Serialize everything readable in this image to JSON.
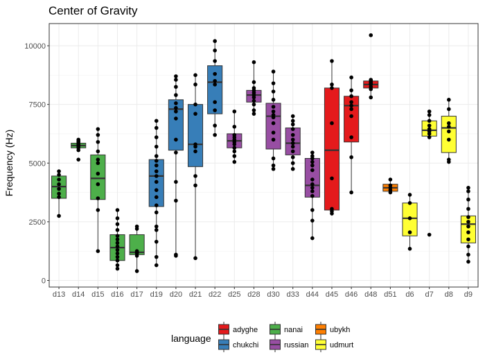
{
  "chart_data": {
    "type": "box",
    "title": "Center of Gravity",
    "xlabel": "",
    "ylabel": "Frequency (Hz)",
    "ylim": [
      0,
      10800
    ],
    "yticks": [
      0,
      2500,
      5000,
      7500,
      10000
    ],
    "ytick_labels": [
      "0",
      "2500",
      "5000",
      "7500",
      "10000"
    ],
    "grid": true,
    "legend": {
      "title": "language",
      "position": "bottom",
      "entries": [
        {
          "name": "adyghe",
          "color": "#e41a1c"
        },
        {
          "name": "chukchi",
          "color": "#377eb8"
        },
        {
          "name": "nanai",
          "color": "#4daf4a"
        },
        {
          "name": "russian",
          "color": "#984ea3"
        },
        {
          "name": "ubykh",
          "color": "#ff7f00"
        },
        {
          "name": "udmurt",
          "color": "#ffff33"
        }
      ]
    },
    "categories": [
      "d13",
      "d14",
      "d15",
      "d16",
      "d17",
      "d19",
      "d20",
      "d21",
      "d22",
      "d25",
      "d28",
      "d30",
      "d33",
      "d44",
      "d45",
      "d46",
      "d48",
      "d51",
      "d6",
      "d7",
      "d8",
      "d9"
    ],
    "boxes": [
      {
        "label": "d13",
        "language": "nanai",
        "whisker_low": 2750,
        "q1": 3500,
        "median": 4000,
        "q3": 4450,
        "whisker_high": 4700,
        "points": [
          2750,
          3550,
          3700,
          3900,
          4100,
          4300,
          4500,
          4650
        ]
      },
      {
        "label": "d14",
        "language": "nanai",
        "whisker_low": 5550,
        "q1": 5650,
        "median": 5750,
        "q3": 5850,
        "whisker_high": 6000,
        "points": [
          5150,
          5550,
          5650,
          5700,
          5750,
          5800,
          5850,
          5900,
          5950,
          6000
        ]
      },
      {
        "label": "d15",
        "language": "nanai",
        "whisker_low": 1250,
        "q1": 3450,
        "median": 4350,
        "q3": 5350,
        "whisker_high": 6450,
        "points": [
          1250,
          3000,
          3500,
          4100,
          4550,
          5000,
          5150,
          5500,
          5900,
          6200,
          6450
        ]
      },
      {
        "label": "d16",
        "language": "nanai",
        "whisker_low": 500,
        "q1": 850,
        "median": 1400,
        "q3": 1950,
        "whisker_high": 3000,
        "points": [
          500,
          650,
          850,
          1000,
          1150,
          1300,
          1450,
          1600,
          1750,
          1900,
          2150,
          2400,
          2650,
          3000
        ]
      },
      {
        "label": "d17",
        "language": "nanai",
        "whisker_low": 400,
        "q1": 1100,
        "median": 1200,
        "q3": 1950,
        "whisker_high": 2300,
        "points": [
          400,
          1050,
          1150,
          1200,
          1250,
          2200,
          2300
        ]
      },
      {
        "label": "d19",
        "language": "chukchi",
        "whisker_low": 650,
        "q1": 3150,
        "median": 4450,
        "q3": 5150,
        "whisker_high": 6800,
        "points": [
          650,
          1000,
          1650,
          2150,
          2300,
          2900,
          3200,
          3550,
          3850,
          4200,
          4450,
          4650,
          4900,
          5100,
          5300,
          5700,
          6100,
          6500,
          6800
        ]
      },
      {
        "label": "d20",
        "language": "chukchi",
        "whisker_low": 1050,
        "q1": 5550,
        "median": 7300,
        "q3": 7700,
        "whisker_high": 8700,
        "points": [
          1050,
          1100,
          3400,
          4200,
          5450,
          6000,
          6900,
          7200,
          7350,
          7550,
          7900,
          8250,
          8550,
          8700
        ]
      },
      {
        "label": "d21",
        "language": "chukchi",
        "whisker_low": 950,
        "q1": 4850,
        "median": 5800,
        "q3": 7500,
        "whisker_high": 8750,
        "points": [
          950,
          4050,
          4450,
          5500,
          5700,
          5800,
          7100,
          7500,
          8350,
          8750
        ]
      },
      {
        "label": "d22",
        "language": "chukchi",
        "whisker_low": 6200,
        "q1": 7100,
        "median": 8450,
        "q3": 9150,
        "whisker_high": 10200,
        "points": [
          6200,
          6600,
          7250,
          7600,
          8350,
          8500,
          8800,
          9350,
          9800,
          10200
        ]
      },
      {
        "label": "d25",
        "language": "russian",
        "whisker_low": 5050,
        "q1": 5650,
        "median": 5950,
        "q3": 6250,
        "whisker_high": 7200,
        "points": [
          5050,
          5300,
          5500,
          5650,
          5800,
          5900,
          6000,
          6100,
          6200,
          6550,
          7200
        ]
      },
      {
        "label": "d28",
        "language": "russian",
        "whisker_low": 7100,
        "q1": 7600,
        "median": 7900,
        "q3": 8100,
        "whisker_high": 9300,
        "points": [
          7100,
          7250,
          7500,
          7650,
          7800,
          7900,
          8000,
          8100,
          8200,
          8450,
          9300
        ]
      },
      {
        "label": "d30",
        "language": "russian",
        "whisker_low": 4750,
        "q1": 5600,
        "median": 7000,
        "q3": 7550,
        "whisker_high": 8900,
        "points": [
          4750,
          4900,
          5200,
          6000,
          6300,
          6700,
          6950,
          7050,
          7200,
          7400,
          7700,
          8050,
          8400,
          8900
        ]
      },
      {
        "label": "d33",
        "language": "russian",
        "whisker_low": 4750,
        "q1": 5350,
        "median": 5850,
        "q3": 6500,
        "whisker_high": 7000,
        "points": [
          4750,
          5000,
          5250,
          5500,
          5700,
          5850,
          6000,
          6200,
          6450,
          6650,
          6800,
          7000
        ]
      },
      {
        "label": "d44",
        "language": "russian",
        "whisker_low": 1800,
        "q1": 3550,
        "median": 4050,
        "q3": 5200,
        "whisker_high": 5450,
        "points": [
          1800,
          2550,
          3000,
          3600,
          3800,
          3950,
          4100,
          4300,
          4700,
          4900,
          5050,
          5200,
          5300,
          5450
        ]
      },
      {
        "label": "d45",
        "language": "adyghe",
        "whisker_low": 2850,
        "q1": 3000,
        "median": 5550,
        "q3": 8200,
        "whisker_high": 9350,
        "points": [
          2850,
          2950,
          3050,
          4350,
          6700,
          8200,
          8350,
          9350
        ]
      },
      {
        "label": "d46",
        "language": "adyghe",
        "whisker_low": 3750,
        "q1": 5900,
        "median": 7450,
        "q3": 7850,
        "whisker_high": 8650,
        "points": [
          3750,
          5250,
          6100,
          7000,
          7300,
          7450,
          7600,
          7850,
          8100,
          8650
        ]
      },
      {
        "label": "d48",
        "language": "adyghe",
        "whisker_low": 7800,
        "q1": 8200,
        "median": 8350,
        "q3": 8500,
        "whisker_high": 8550,
        "points": [
          7800,
          8150,
          8250,
          8350,
          8400,
          8450,
          8500,
          8550,
          10450
        ]
      },
      {
        "label": "d51",
        "language": "ubykh",
        "whisker_low": 3750,
        "q1": 3800,
        "median": 3950,
        "q3": 4100,
        "whisker_high": 4300,
        "points": [
          3750,
          3850,
          3950,
          4050,
          4300
        ]
      },
      {
        "label": "d6",
        "language": "udmurt",
        "whisker_low": 1350,
        "q1": 1900,
        "median": 2650,
        "q3": 3300,
        "whisker_high": 3650,
        "points": [
          1350,
          2050,
          2650,
          3300,
          3650
        ]
      },
      {
        "label": "d7",
        "language": "udmurt",
        "whisker_low": 6100,
        "q1": 6150,
        "median": 6400,
        "q3": 6800,
        "whisker_high": 7200,
        "points": [
          1950,
          6100,
          6250,
          6350,
          6450,
          6600,
          6800,
          7050,
          7200
        ]
      },
      {
        "label": "d8",
        "language": "udmurt",
        "whisker_low": 5050,
        "q1": 5450,
        "median": 6500,
        "q3": 7000,
        "whisker_high": 7700,
        "points": [
          5050,
          5150,
          6000,
          6350,
          6550,
          6700,
          7300,
          7700
        ]
      },
      {
        "label": "d9",
        "language": "udmurt",
        "whisker_low": 800,
        "q1": 1600,
        "median": 2400,
        "q3": 2750,
        "whisker_high": 3950,
        "points": [
          800,
          1100,
          1450,
          1750,
          2050,
          2300,
          2500,
          2700,
          3050,
          3450,
          3800,
          3950
        ]
      }
    ]
  }
}
